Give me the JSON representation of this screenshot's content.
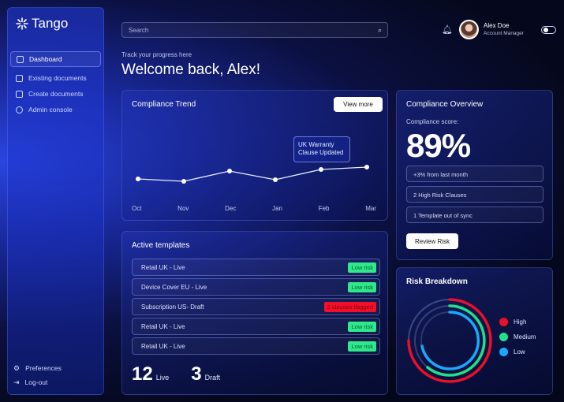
{
  "sidebar": {
    "logo_text": "Tango",
    "items": [
      {
        "label": "Dashboard",
        "icon": "dashboard-icon"
      },
      {
        "label": "Existing documents",
        "icon": "document-icon"
      },
      {
        "label": "Create documents",
        "icon": "create-document-icon"
      },
      {
        "label": "Admin console",
        "icon": "user-icon"
      }
    ],
    "bottom": [
      {
        "label": "Preferences",
        "icon": "sliders-icon"
      },
      {
        "label": "Log-out",
        "icon": "logout-icon"
      }
    ]
  },
  "header": {
    "search_placeholder": "Search",
    "user_name": "Alex Doe",
    "user_role": "Account Manager"
  },
  "welcome": {
    "subtitle": "Track your progress here",
    "title": "Welcome back, Alex!"
  },
  "trend": {
    "title": "Compliance Trend",
    "button": "View more",
    "tooltip_line1": "UK Warranty",
    "tooltip_line2": "Clause Updated",
    "months": [
      "Oct",
      "Nov",
      "Dec",
      "Jan",
      "Feb",
      "Mar"
    ]
  },
  "overview": {
    "title": "Compliance Overview",
    "score_label": "Compliance score:",
    "score": "89%",
    "stats": [
      "+3% from last month",
      "2 High Risk Clauses",
      "1 Template out of sync"
    ],
    "button": "Review Risk"
  },
  "templates": {
    "title": "Active templates",
    "rows": [
      {
        "name": "Retail UK - Live",
        "badge": "Low risk",
        "status": "green"
      },
      {
        "name": "Device Cover EU - Live",
        "badge": "Low risk",
        "status": "green"
      },
      {
        "name": "Subscription US- Draft",
        "badge": "2 clauses flagged",
        "status": "red"
      },
      {
        "name": "Retail UK - Live",
        "badge": "Low risk",
        "status": "green"
      },
      {
        "name": "Retail UK - Live",
        "badge": "Low risk",
        "status": "green"
      }
    ],
    "live_count": "12",
    "live_label": "Live",
    "draft_count": "3",
    "draft_label": "Draft"
  },
  "risk": {
    "title": "Risk Breakdown",
    "legend": [
      {
        "label": "High",
        "color": "#e8102a"
      },
      {
        "label": "Medium",
        "color": "#22e08a"
      },
      {
        "label": "Low",
        "color": "#1aa8ff"
      }
    ]
  },
  "colors": {
    "accent": "#2a45e0",
    "high": "#e8102a",
    "medium": "#22e08a",
    "low": "#1aa8ff"
  }
}
